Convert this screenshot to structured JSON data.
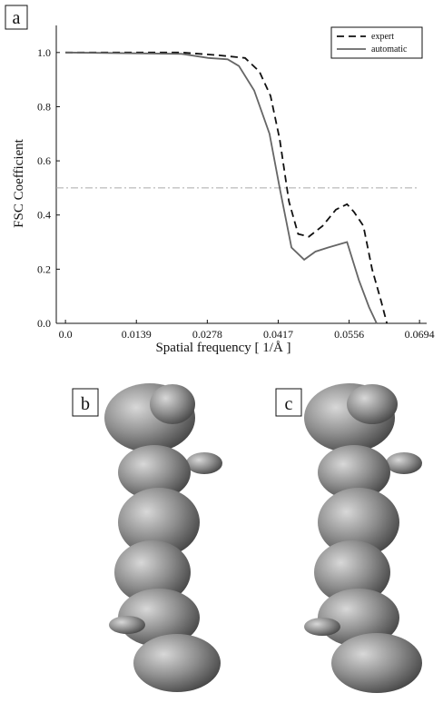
{
  "panel_labels": [
    "a",
    "b",
    "c"
  ],
  "chart_data": {
    "type": "line",
    "x_label": "Spatial frequency [ 1/Å ]",
    "y_label": "FSC Coefficient",
    "xlim": [
      -0.0018,
      0.0708
    ],
    "ylim": [
      0,
      1.1
    ],
    "xticks": [
      {
        "value": 0,
        "label": "0.0"
      },
      0.0139,
      0.0278,
      0.0417,
      0.0556,
      0.0694
    ],
    "yticks": [
      {
        "value": 0,
        "label": "0.0"
      },
      0.2,
      0.4,
      0.6,
      0.8,
      {
        "value": 1,
        "label": "1.0"
      }
    ],
    "threshold": 0.5,
    "threshold_color": "#aaaaaa",
    "legend": "upper right",
    "series": [
      {
        "name": "expert",
        "color": "#111111",
        "dash": "8,5",
        "x": [
          0,
          0.0228,
          0.0299,
          0.0352,
          0.038,
          0.0402,
          0.042,
          0.0438,
          0.0456,
          0.0477,
          0.0504,
          0.053,
          0.0552,
          0.0566,
          0.0584,
          0.0601,
          0.0619,
          0.063
        ],
        "values": [
          1.0,
          1.0,
          0.99,
          0.98,
          0.93,
          0.84,
          0.68,
          0.45,
          0.33,
          0.32,
          0.36,
          0.42,
          0.44,
          0.41,
          0.36,
          0.2,
          0.08,
          0.0
        ]
      },
      {
        "name": "automatic",
        "color": "#666666",
        "dash": "none",
        "x": [
          0,
          0.0228,
          0.028,
          0.0318,
          0.034,
          0.037,
          0.04,
          0.042,
          0.0443,
          0.0468,
          0.049,
          0.0515,
          0.0552,
          0.0575,
          0.0595,
          0.061
        ],
        "values": [
          1.0,
          0.995,
          0.98,
          0.975,
          0.95,
          0.86,
          0.7,
          0.5,
          0.28,
          0.235,
          0.265,
          0.28,
          0.3,
          0.16,
          0.06,
          0.0
        ]
      }
    ]
  }
}
